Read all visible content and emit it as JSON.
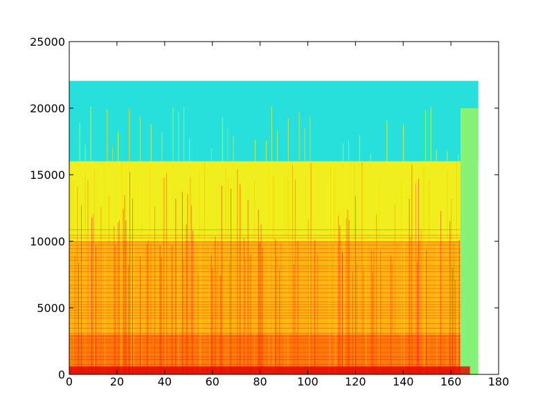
{
  "chart_data": {
    "type": "heatmap",
    "subtype": "spectrogram",
    "title": "",
    "xlabel": "",
    "ylabel": "",
    "xlim": [
      0,
      180
    ],
    "ylim": [
      0,
      25000
    ],
    "x_ticks": [
      0,
      20,
      40,
      60,
      80,
      100,
      120,
      140,
      160,
      180
    ],
    "x_tick_labels": [
      "0",
      "20",
      "40",
      "60",
      "80",
      "100",
      "120",
      "140",
      "160",
      "180"
    ],
    "y_ticks": [
      0,
      5000,
      10000,
      15000,
      20000,
      25000
    ],
    "y_tick_labels": [
      "0",
      "5000",
      "10000",
      "15000",
      "20000",
      "25000"
    ],
    "grid": false,
    "colormap": "jet",
    "data_extent": {
      "x": [
        0,
        171.5
      ],
      "y": [
        0,
        22050
      ]
    },
    "regions": [
      {
        "description": "noise floor above lowpass cutoff",
        "x": [
          0,
          171.5
        ],
        "y": [
          16000,
          22050
        ],
        "level": 0.38,
        "color": "#27e0dc"
      },
      {
        "description": "upper band below cutoff",
        "x": [
          0,
          166
        ],
        "y": [
          10000,
          16000
        ],
        "level": 0.68,
        "color": "#f0ee1c"
      },
      {
        "description": "mid band",
        "x": [
          0,
          164
        ],
        "y": [
          3000,
          10000
        ],
        "level": 0.78,
        "color": "#ffb414"
      },
      {
        "description": "low band",
        "x": [
          0,
          164
        ],
        "y": [
          0,
          3000
        ],
        "level": 0.85,
        "color": "#ff7a0a"
      },
      {
        "description": "tail after track end, below 20 kHz",
        "x": [
          164,
          171.5
        ],
        "y": [
          0,
          20000
        ],
        "level": 0.52,
        "color": "#86f27a"
      }
    ],
    "cutoff_frequencies": [
      16000,
      20000
    ]
  }
}
